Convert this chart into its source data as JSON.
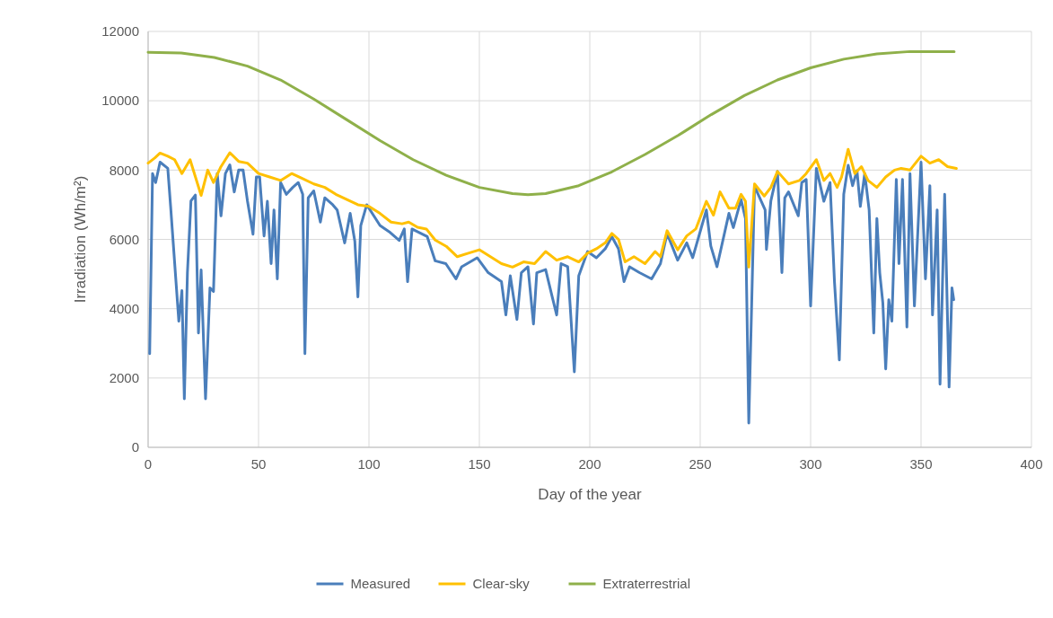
{
  "chart_data": {
    "type": "line",
    "xlabel": "Day of the year",
    "ylabel": "Irradiation (Wh/m²)",
    "xlim": [
      0,
      400
    ],
    "xticks": [
      0,
      50,
      100,
      150,
      200,
      250,
      300,
      350,
      400
    ],
    "ylim": [
      0,
      12000
    ],
    "yticks": [
      0,
      2000,
      4000,
      6000,
      8000,
      10000,
      12000
    ],
    "grid": true,
    "legend": "bottom",
    "line_style": "solid",
    "marker": "none",
    "series": [
      {
        "name": "Measured",
        "color": "#4a7ebb",
        "x": [
          0.7,
          2,
          3.4,
          5.4,
          8.9,
          10.2,
          13.9,
          15.3,
          16.4,
          17.8,
          19.4,
          21.4,
          22.8,
          24,
          26,
          28,
          29.6,
          31.3,
          33,
          35,
          37,
          39,
          41,
          43,
          45,
          47.5,
          49,
          50.5,
          52.5,
          54,
          55.7,
          57,
          58.5,
          60,
          62.6,
          65.5,
          68,
          70,
          71,
          72.5,
          75,
          78,
          80,
          83.6,
          85.6,
          89,
          91.5,
          93.6,
          95,
          96.3,
          99,
          102,
          105,
          109.6,
          113.7,
          116,
          117.5,
          119.5,
          126.4,
          130,
          134.8,
          139.4,
          142,
          149,
          154,
          160,
          162,
          164,
          167,
          169,
          172,
          174.5,
          176,
          180,
          183,
          185,
          187,
          190,
          193,
          195,
          199,
          203,
          207,
          210,
          213,
          215.5,
          218,
          222.5,
          228,
          232,
          235,
          239.8,
          243.9,
          246.6,
          252.8,
          254.8,
          257.6,
          263,
          265,
          268.5,
          270.5,
          272,
          274.6,
          279.4,
          280,
          282,
          285,
          287,
          288.3,
          290,
          294.4,
          296,
          298,
          300,
          302.6,
          306,
          308.8,
          310.8,
          313,
          315,
          317,
          319,
          321,
          322.5,
          324.5,
          326.5,
          328.6,
          330,
          331.3,
          332.7,
          334,
          335.4,
          336.8,
          338.8,
          340,
          341.6,
          343.6,
          345,
          347,
          350,
          352,
          354,
          355.2,
          357.3,
          358.6,
          360.7,
          362.7,
          364,
          364.8
        ],
        "values": [
          2700,
          7900,
          7640,
          8230,
          8050,
          6940,
          3640,
          4520,
          1400,
          5040,
          7110,
          7280,
          3300,
          5120,
          1400,
          4600,
          4500,
          7900,
          6680,
          7900,
          8150,
          7370,
          8000,
          8000,
          7100,
          6150,
          7800,
          7800,
          6100,
          7100,
          5300,
          6850,
          4860,
          7640,
          7300,
          7500,
          7640,
          7300,
          2700,
          7200,
          7400,
          6500,
          7200,
          7000,
          6850,
          5900,
          6750,
          5950,
          4340,
          6400,
          7000,
          6700,
          6400,
          6200,
          5970,
          6300,
          4780,
          6300,
          6080,
          5380,
          5300,
          4860,
          5210,
          5470,
          5040,
          4780,
          3820,
          4950,
          3690,
          5040,
          5210,
          3560,
          5040,
          5130,
          4340,
          3820,
          5300,
          5210,
          2180,
          4950,
          5650,
          5470,
          5730,
          6080,
          5730,
          4780,
          5210,
          5040,
          4860,
          5300,
          6170,
          5400,
          5900,
          5470,
          6850,
          5810,
          5210,
          6750,
          6340,
          7150,
          6600,
          700,
          7530,
          6850,
          5710,
          7110,
          7960,
          5040,
          7200,
          7370,
          6680,
          7640,
          7730,
          4080,
          8050,
          7100,
          7640,
          4780,
          2520,
          7300,
          8140,
          7550,
          7980,
          6950,
          7900,
          6850,
          3300,
          6600,
          5040,
          4170,
          2260,
          4260,
          3640,
          7730,
          5300,
          7730,
          3470,
          7900,
          4080,
          8230,
          4860,
          7550,
          3820,
          6850,
          1820,
          7300,
          1740,
          4600,
          4260
        ]
      },
      {
        "name": "Clear-sky",
        "color": "#ffc000",
        "x": [
          0,
          3,
          5.4,
          8.9,
          12,
          15.3,
          19,
          24,
          27,
          29.6,
          33,
          37,
          41,
          45,
          50,
          55,
          60,
          65,
          70,
          75,
          80,
          85,
          90,
          95,
          100,
          105,
          110,
          115,
          118,
          122,
          126,
          130,
          135,
          140,
          145,
          150,
          155,
          160,
          165,
          170,
          175,
          180,
          185,
          190,
          195,
          199,
          203,
          207,
          210,
          213,
          216,
          220,
          225,
          229.6,
          232,
          235,
          239.8,
          243.9,
          248,
          252.8,
          256,
          259,
          263,
          266,
          268.5,
          270.5,
          272,
          274.6,
          279,
          282,
          285,
          290,
          295,
          298,
          302.6,
          306,
          308.8,
          312,
          314,
          317,
          320,
          323,
          326,
          330,
          334,
          338,
          341,
          345,
          350,
          354,
          358,
          362,
          366
        ],
        "values": [
          8200,
          8350,
          8490,
          8400,
          8300,
          7900,
          8300,
          7270,
          8000,
          7640,
          8100,
          8500,
          8250,
          8200,
          7900,
          7800,
          7700,
          7900,
          7750,
          7600,
          7500,
          7300,
          7150,
          7000,
          6950,
          6750,
          6500,
          6450,
          6500,
          6350,
          6300,
          5980,
          5800,
          5500,
          5600,
          5700,
          5500,
          5300,
          5200,
          5350,
          5300,
          5650,
          5400,
          5500,
          5350,
          5600,
          5730,
          5900,
          6170,
          6000,
          5350,
          5500,
          5300,
          5650,
          5500,
          6250,
          5700,
          6100,
          6300,
          7100,
          6700,
          7370,
          6900,
          6900,
          7300,
          7100,
          5200,
          7600,
          7250,
          7500,
          7960,
          7600,
          7700,
          7900,
          8300,
          7700,
          7900,
          7500,
          7800,
          8600,
          7900,
          8100,
          7700,
          7500,
          7800,
          8000,
          8050,
          8000,
          8400,
          8200,
          8300,
          8100,
          8050
        ]
      },
      {
        "name": "Extraterrestrial",
        "color": "#8fb04a",
        "x": [
          0,
          15,
          30,
          45,
          60,
          75,
          90,
          105,
          120,
          135,
          150,
          165,
          172,
          180,
          195,
          210,
          225,
          240,
          255,
          270,
          285,
          300,
          315,
          330,
          345,
          365
        ],
        "values": [
          11400,
          11380,
          11250,
          11000,
          10600,
          10050,
          9450,
          8850,
          8300,
          7850,
          7500,
          7320,
          7290,
          7320,
          7550,
          7950,
          8450,
          9000,
          9600,
          10150,
          10600,
          10950,
          11200,
          11350,
          11420,
          11420
        ]
      }
    ]
  }
}
